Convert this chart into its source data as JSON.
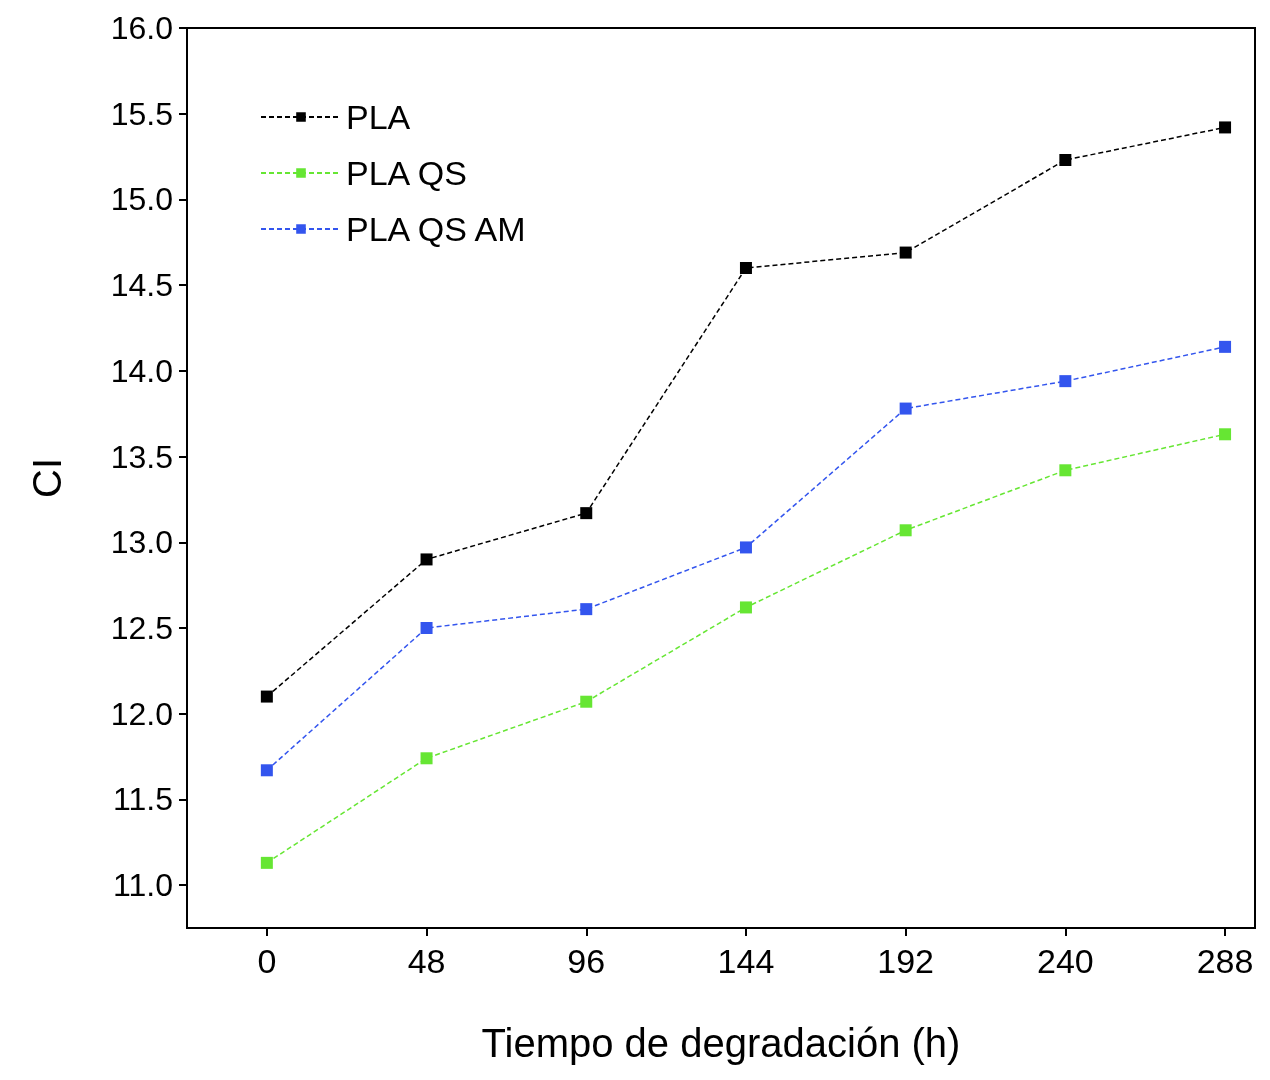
{
  "chart_data": {
    "type": "line",
    "xlabel": "Tiempo de degradación (h)",
    "ylabel": "CI",
    "x": [
      0,
      48,
      96,
      144,
      192,
      240,
      288
    ],
    "series": [
      {
        "name": "PLA",
        "color": "#000000",
        "values": [
          12.1,
          12.9,
          13.17,
          14.6,
          14.69,
          15.23,
          15.42
        ]
      },
      {
        "name": "PLA QS",
        "color": "#66e633",
        "values": [
          11.13,
          11.74,
          12.07,
          12.62,
          13.07,
          13.42,
          13.63
        ]
      },
      {
        "name": "PLA QS AM",
        "color": "#3355ee",
        "values": [
          11.67,
          12.5,
          12.61,
          12.97,
          13.78,
          13.94,
          14.14
        ]
      }
    ],
    "xlim": [
      -24,
      297
    ],
    "xticks": [
      0,
      48,
      96,
      144,
      192,
      240,
      288
    ],
    "ylim": [
      10.75,
      16.0
    ],
    "yticks": [
      {
        "value": 11,
        "label": "11.0"
      },
      {
        "value": 11.5,
        "label": "11.5"
      },
      {
        "value": 12,
        "label": "12.0"
      },
      {
        "value": 12.5,
        "label": "12.5"
      },
      {
        "value": 13,
        "label": "13.0"
      },
      {
        "value": 13.5,
        "label": "13.5"
      },
      {
        "value": 14,
        "label": "14.0"
      },
      {
        "value": 14.5,
        "label": "14.5"
      },
      {
        "value": 15,
        "label": "15.0"
      },
      {
        "value": 15.5,
        "label": "15.5"
      },
      {
        "value": 16,
        "label": "16.0"
      }
    ],
    "grid": false,
    "legend": "top left",
    "marker": "square",
    "line_style": "dashed"
  }
}
